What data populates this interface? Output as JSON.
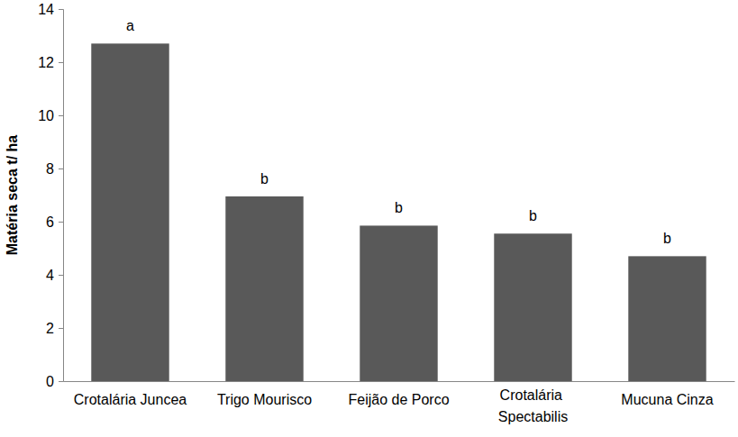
{
  "chart_data": {
    "type": "bar",
    "y_label": "Matéria seca t/ ha",
    "categories": [
      "Crotalária Juncea",
      "Trigo Mourisco",
      "Feijão de Porco",
      "Crotalária Spectabilis",
      "Mucuna Cinza"
    ],
    "values": [
      12.7,
      6.95,
      5.85,
      5.55,
      4.7
    ],
    "annotations": [
      "a",
      "b",
      "b",
      "b",
      "b"
    ],
    "color": "#595959",
    "ylim": [
      0,
      14
    ],
    "yticks": [
      0,
      2,
      4,
      6,
      8,
      10,
      12,
      14
    ],
    "grid": false
  }
}
